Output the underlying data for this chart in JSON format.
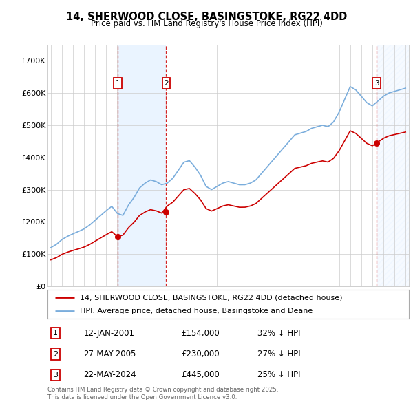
{
  "title1": "14, SHERWOOD CLOSE, BASINGSTOKE, RG22 4DD",
  "title2": "Price paid vs. HM Land Registry's House Price Index (HPI)",
  "legend_line1": "14, SHERWOOD CLOSE, BASINGSTOKE, RG22 4DD (detached house)",
  "legend_line2": "HPI: Average price, detached house, Basingstoke and Deane",
  "footer": "Contains HM Land Registry data © Crown copyright and database right 2025.\nThis data is licensed under the Open Government Licence v3.0.",
  "sale_labels": [
    "1",
    "2",
    "3"
  ],
  "sale_dates": [
    "12-JAN-2001",
    "27-MAY-2005",
    "22-MAY-2024"
  ],
  "sale_prices_str": [
    "£154,000",
    "£230,000",
    "£445,000"
  ],
  "sale_hpi_str": [
    "32% ↓ HPI",
    "27% ↓ HPI",
    "25% ↓ HPI"
  ],
  "background_color": "#ffffff",
  "grid_color": "#cccccc",
  "hpi_line_color": "#7aaddc",
  "price_line_color": "#cc0000",
  "vline_color": "#cc0000",
  "shade_color": "#ddeeff",
  "ylim": [
    0,
    750000
  ],
  "yticks": [
    0,
    100000,
    200000,
    300000,
    400000,
    500000,
    600000,
    700000
  ],
  "ytick_labels": [
    "£0",
    "£100K",
    "£200K",
    "£300K",
    "£400K",
    "£500K",
    "£600K",
    "£700K"
  ],
  "xlim_start": 1994.7,
  "xlim_end": 2027.3,
  "xticks": [
    1995,
    1996,
    1997,
    1998,
    1999,
    2000,
    2001,
    2002,
    2003,
    2004,
    2005,
    2006,
    2007,
    2008,
    2009,
    2010,
    2011,
    2012,
    2013,
    2014,
    2015,
    2016,
    2017,
    2018,
    2019,
    2020,
    2021,
    2022,
    2023,
    2024,
    2025,
    2026,
    2027
  ],
  "sale1_x": 2001.04,
  "sale2_x": 2005.41,
  "sale3_x": 2024.39,
  "sale1_price": 154000,
  "sale2_price": 230000,
  "sale3_price": 445000,
  "hpi_years": [
    1995,
    1995.5,
    1996,
    1996.5,
    1997,
    1997.5,
    1998,
    1998.5,
    1999,
    1999.5,
    2000,
    2000.5,
    2001,
    2001.5,
    2002,
    2002.5,
    2003,
    2003.5,
    2004,
    2004.5,
    2005,
    2005.5,
    2006,
    2006.5,
    2007,
    2007.5,
    2008,
    2008.5,
    2009,
    2009.5,
    2010,
    2010.5,
    2011,
    2011.5,
    2012,
    2012.5,
    2013,
    2013.5,
    2014,
    2014.5,
    2015,
    2015.5,
    2016,
    2016.5,
    2017,
    2017.5,
    2018,
    2018.5,
    2019,
    2019.5,
    2020,
    2020.5,
    2021,
    2021.5,
    2022,
    2022.5,
    2023,
    2023.5,
    2024,
    2024.5,
    2025,
    2025.5,
    2026,
    2026.5,
    2027
  ],
  "hpi_vals": [
    120000,
    130000,
    145000,
    155000,
    163000,
    170000,
    178000,
    190000,
    205000,
    220000,
    235000,
    248000,
    226000,
    220000,
    252000,
    275000,
    305000,
    320000,
    330000,
    325000,
    315000,
    320000,
    335000,
    360000,
    385000,
    390000,
    370000,
    345000,
    310000,
    300000,
    310000,
    320000,
    325000,
    320000,
    315000,
    315000,
    320000,
    330000,
    350000,
    370000,
    390000,
    410000,
    430000,
    450000,
    470000,
    475000,
    480000,
    490000,
    495000,
    500000,
    495000,
    510000,
    540000,
    580000,
    620000,
    610000,
    590000,
    570000,
    560000,
    575000,
    590000,
    600000,
    605000,
    610000,
    615000
  ]
}
